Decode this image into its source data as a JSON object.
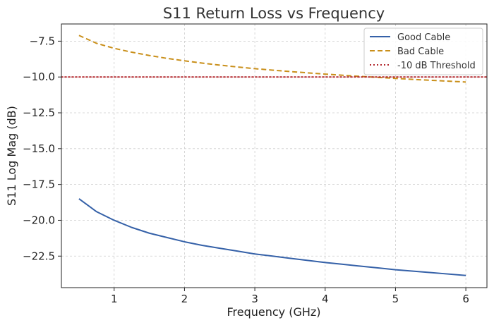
{
  "chart_data": {
    "type": "line",
    "title": "S11 Return Loss vs Frequency",
    "xlabel": "Frequency (GHz)",
    "ylabel": "S11 Log Mag (dB)",
    "xlim": [
      0.25,
      6.3
    ],
    "ylim": [
      -24.7,
      -6.3
    ],
    "x_ticks": [
      1,
      2,
      3,
      4,
      5,
      6
    ],
    "x_tick_labels": [
      "1",
      "2",
      "3",
      "4",
      "5",
      "6"
    ],
    "y_ticks": [
      -22.5,
      -20.0,
      -17.5,
      -15.0,
      -12.5,
      -10.0,
      -7.5
    ],
    "y_tick_labels": [
      "−22.5",
      "−20.0",
      "−17.5",
      "−15.0",
      "−12.5",
      "−10.0",
      "−7.5"
    ],
    "grid": true,
    "legend_position": "top-right",
    "x": [
      0.5,
      0.75,
      1.0,
      1.25,
      1.5,
      1.75,
      2.0,
      2.25,
      2.5,
      2.75,
      3.0,
      3.25,
      3.5,
      3.75,
      4.0,
      4.25,
      4.5,
      4.75,
      5.0,
      5.25,
      5.5,
      5.75,
      6.0
    ],
    "series": [
      {
        "name": "Good Cable",
        "style": "solid",
        "color": "#3561a8",
        "values": [
          -18.5,
          -19.4,
          -20.0,
          -20.5,
          -20.9,
          -21.2,
          -21.5,
          -21.75,
          -21.95,
          -22.15,
          -22.35,
          -22.5,
          -22.65,
          -22.8,
          -22.95,
          -23.07,
          -23.2,
          -23.32,
          -23.45,
          -23.55,
          -23.65,
          -23.75,
          -23.85
        ]
      },
      {
        "name": "Bad Cable",
        "style": "dashed",
        "color": "#c98f1a",
        "values": [
          -7.1,
          -7.65,
          -8.0,
          -8.27,
          -8.5,
          -8.7,
          -8.87,
          -9.03,
          -9.17,
          -9.3,
          -9.42,
          -9.52,
          -9.62,
          -9.71,
          -9.8,
          -9.88,
          -9.96,
          -10.03,
          -10.1,
          -10.17,
          -10.23,
          -10.29,
          -10.35
        ]
      },
      {
        "name": "-10 dB Threshold",
        "style": "dotted",
        "color": "#b3292f",
        "values": [
          -10.0,
          -10.0,
          -10.0,
          -10.0,
          -10.0,
          -10.0,
          -10.0,
          -10.0,
          -10.0,
          -10.0,
          -10.0,
          -10.0,
          -10.0,
          -10.0,
          -10.0,
          -10.0,
          -10.0,
          -10.0,
          -10.0,
          -10.0,
          -10.0,
          -10.0,
          -10.0
        ]
      }
    ]
  }
}
